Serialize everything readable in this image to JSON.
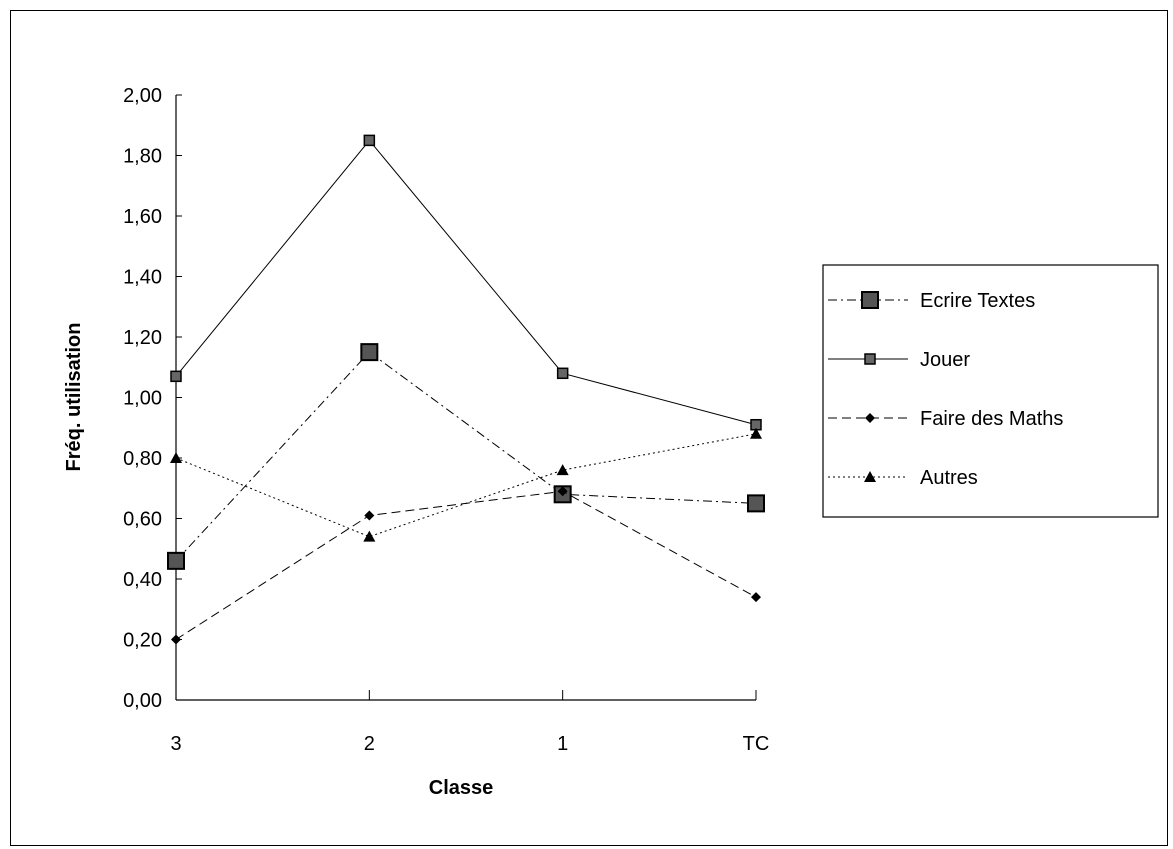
{
  "chart_data": {
    "type": "line",
    "title": "",
    "xlabel": "Classe",
    "ylabel": "Fréq. utilisation",
    "categories": [
      "3",
      "2",
      "1",
      "TC"
    ],
    "ylim": [
      0,
      2
    ],
    "yticks": [
      "0,00",
      "0,20",
      "0,40",
      "0,60",
      "0,80",
      "1,00",
      "1,20",
      "1,40",
      "1,60",
      "1,80",
      "2,00"
    ],
    "grid": false,
    "legend_position": "right",
    "series": [
      {
        "name": "Ecrire Textes",
        "values": [
          0.46,
          1.15,
          0.68,
          0.65
        ],
        "marker": "square-large",
        "line_style": "dash-dot"
      },
      {
        "name": "Jouer",
        "values": [
          1.07,
          1.85,
          1.08,
          0.91
        ],
        "marker": "square",
        "line_style": "solid"
      },
      {
        "name": "Faire des Maths",
        "values": [
          0.2,
          0.61,
          0.69,
          0.34
        ],
        "marker": "diamond",
        "line_style": "dashed"
      },
      {
        "name": "Autres",
        "values": [
          0.8,
          0.54,
          0.76,
          0.88
        ],
        "marker": "triangle",
        "line_style": "dotted"
      }
    ]
  }
}
